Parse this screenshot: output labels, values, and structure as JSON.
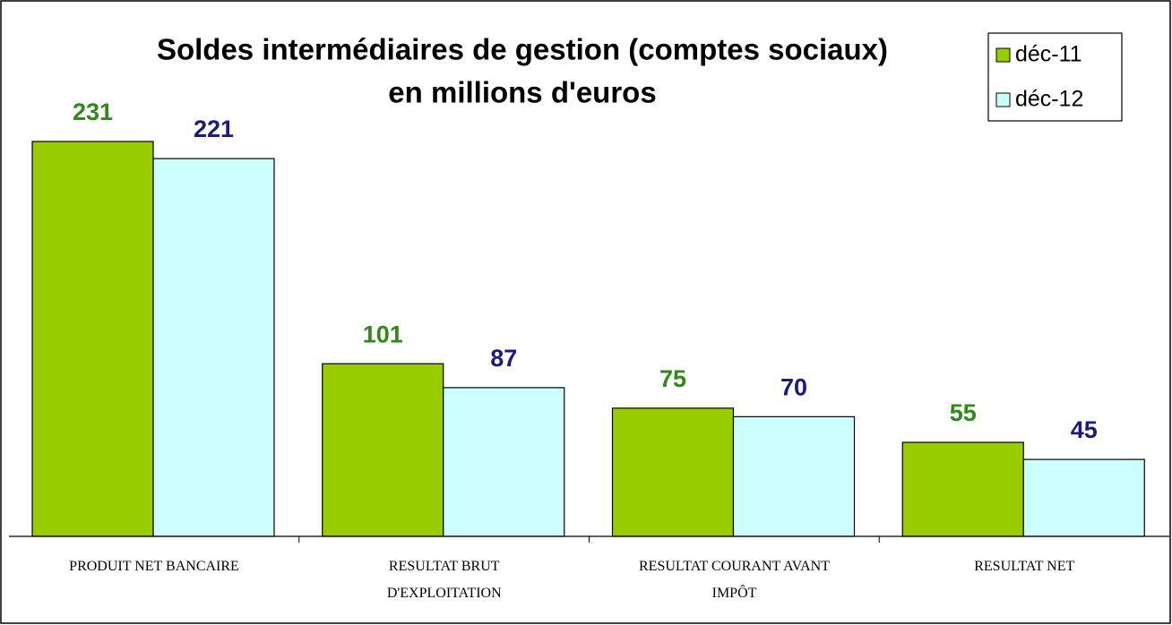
{
  "chart_data": {
    "type": "bar",
    "title": "Soldes intermédiaires de gestion (comptes sociaux)",
    "subtitle": "en millions d'euros",
    "categories": [
      "PRODUIT NET BANCAIRE",
      "RESULTAT BRUT\nD'EXPLOITATION",
      "RESULTAT COURANT AVANT\nIMPÔT",
      "RESULTAT NET"
    ],
    "series": [
      {
        "name": "déc-11",
        "color": "#99cc00",
        "label_color": "#2e8b1a",
        "values": [
          231,
          101,
          75,
          55
        ]
      },
      {
        "name": "déc-12",
        "color": "#ccffff",
        "label_color": "#1a1a80",
        "values": [
          221,
          87,
          70,
          45
        ]
      }
    ],
    "legend": "top-right"
  }
}
